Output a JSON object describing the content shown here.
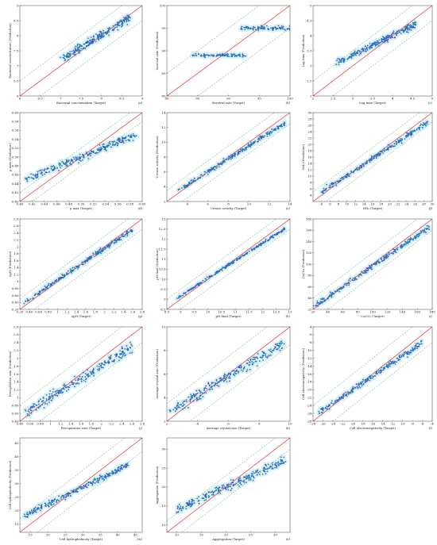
{
  "colors": {
    "ideal_line": "#e8474c",
    "band_line": "#3aa66a",
    "point": "#1f7fbf",
    "point_dense": "#4a4fb8",
    "halo": "#bfe6ee",
    "frame": "#444444"
  },
  "chart_data": [
    {
      "type": "scatter",
      "panel": "a",
      "xlabel": "Bacterial concentration (Target)",
      "ylabel": "Bacterial concentration (Prediction)",
      "xlim": [
        6.0,
        9.0
      ],
      "ylim": [
        6.0,
        9.0
      ],
      "xticks": [
        6.0,
        6.5,
        7.0,
        7.5,
        8.0,
        8.5,
        9.0
      ],
      "yticks": [
        6.0,
        6.5,
        7.0,
        7.5,
        8.0,
        8.5,
        9.0
      ],
      "band": 0.5,
      "cloud": {
        "x0": 7.0,
        "x1": 8.7,
        "y0": 7.2,
        "y1": 8.6,
        "spread": 0.18
      }
    },
    {
      "type": "scatter",
      "panel": "b",
      "xlabel": "Survival rate (Target)",
      "ylabel": "Survival rate (Prediction)",
      "xlim": [
        80,
        100
      ],
      "ylim": [
        80,
        100
      ],
      "xticks": [
        80,
        85,
        90,
        95,
        100
      ],
      "yticks": [
        80,
        85,
        90,
        95,
        100
      ],
      "band": 5,
      "cloud": {
        "clusters": [
          {
            "x0": 84,
            "x1": 93,
            "y": 89,
            "spread": 0.5
          },
          {
            "x0": 92,
            "x1": 100,
            "y": 95,
            "spread": 0.6
          }
        ]
      }
    },
    {
      "type": "scatter",
      "panel": "c",
      "xlabel": "Lag time (Target)",
      "ylabel": "Lag time (Prediction)",
      "xlim": [
        2.0,
        5.0
      ],
      "ylim": [
        2.0,
        5.0
      ],
      "xticks": [
        2.0,
        2.5,
        3.0,
        3.5,
        4.0,
        4.5,
        5.0
      ],
      "yticks": [
        2.0,
        2.5,
        3.0,
        3.5,
        4.0,
        4.5,
        5.0
      ],
      "band": 0.5,
      "cloud": {
        "x0": 2.6,
        "x1": 4.6,
        "y0": 3.1,
        "y1": 4.4,
        "spread": 0.15
      }
    },
    {
      "type": "scatter",
      "panel": "d",
      "xlabel": "μ max (Target)",
      "ylabel": "μ max (Prediction)",
      "xlim": [
        0.4,
        0.6
      ],
      "ylim": [
        0.4,
        0.6
      ],
      "xticks": [
        0.4,
        0.42,
        0.44,
        0.46,
        0.48,
        0.5,
        0.52,
        0.54,
        0.56,
        0.58,
        0.6
      ],
      "yticks": [
        0.4,
        0.42,
        0.44,
        0.46,
        0.48,
        0.5,
        0.52,
        0.54,
        0.56,
        0.58,
        0.6
      ],
      "band": 0.02,
      "cloud": {
        "x0": 0.41,
        "x1": 0.59,
        "y0": 0.45,
        "y1": 0.55,
        "spread": 0.012
      }
    },
    {
      "type": "scatter",
      "panel": "e",
      "xlabel": "Urease activity (Target)",
      "ylabel": "Urease activity (Prediction)",
      "xlim": [
        2,
        14
      ],
      "ylim": [
        2,
        14
      ],
      "xticks": [
        4,
        6,
        8,
        10,
        12,
        14
      ],
      "yticks": [
        2,
        4,
        6,
        8,
        10,
        12,
        14
      ],
      "band": 1.5,
      "cloud": {
        "x0": 3.0,
        "x1": 13.5,
        "y0": 3.4,
        "y1": 12.6,
        "spread": 0.4
      }
    },
    {
      "type": "scatter",
      "panel": "f",
      "xlabel": "NH₄ (Target)",
      "ylabel": "NH₄ (Prediction)",
      "xlim": [
        2,
        30
      ],
      "ylim": [
        2,
        30
      ],
      "xticks": [
        4,
        6,
        8,
        10,
        12,
        14,
        16,
        18,
        20,
        22,
        24,
        26,
        28,
        30
      ],
      "yticks": [
        4,
        6,
        8,
        10,
        12,
        14,
        16,
        18,
        20,
        22,
        24,
        26,
        28,
        30
      ],
      "band": 3,
      "cloud": {
        "x0": 4,
        "x1": 29,
        "y0": 5,
        "y1": 27,
        "spread": 1.1
      }
    },
    {
      "type": "scatter",
      "panel": "g",
      "xlabel": "ΔpH (Target)",
      "ylabel": "ΔpH (Prediction)",
      "xlim": [
        0.2,
        2.8
      ],
      "ylim": [
        0.2,
        2.8
      ],
      "xticks": [
        0.2,
        0.4,
        0.6,
        0.8,
        1.0,
        1.2,
        1.4,
        1.6,
        1.8,
        2.0,
        2.2,
        2.4,
        2.6,
        2.8
      ],
      "yticks": [
        0.2,
        0.4,
        0.6,
        0.8,
        1.0,
        1.2,
        1.4,
        1.6,
        1.8,
        2.0,
        2.2,
        2.4,
        2.6,
        2.8
      ],
      "band": 0.3,
      "cloud": {
        "x0": 0.3,
        "x1": 2.6,
        "y0": 0.4,
        "y1": 2.5,
        "spread": 0.09
      }
    },
    {
      "type": "scatter",
      "panel": "h",
      "xlabel": "pH final (Target)",
      "ylabel": "pH final (Prediction)",
      "xlim": [
        8.5,
        13.0
      ],
      "ylim": [
        8.5,
        13.0
      ],
      "xticks": [
        8.5,
        9.0,
        9.5,
        10.0,
        10.5,
        11.0,
        11.5,
        12.0,
        12.5,
        13.0
      ],
      "yticks": [
        8.5,
        9.0,
        9.5,
        10.0,
        10.5,
        11.0,
        11.5,
        12.0,
        12.5,
        13.0
      ],
      "band": 0.5,
      "cloud": {
        "x0": 8.8,
        "x1": 12.8,
        "y0": 9.0,
        "y1": 12.5,
        "spread": 0.1
      }
    },
    {
      "type": "scatter",
      "panel": "i",
      "xlabel": "CaCO₃ (Target)",
      "ylabel": "CaCO₃ (Prediction)",
      "xlim": [
        20,
        180
      ],
      "ylim": [
        20,
        180
      ],
      "xticks": [
        20,
        40,
        60,
        80,
        100,
        120,
        140,
        160,
        180
      ],
      "yticks": [
        20,
        40,
        60,
        80,
        100,
        120,
        140,
        160,
        180
      ],
      "band": 20,
      "cloud": {
        "x0": 22,
        "x1": 175,
        "y0": 25,
        "y1": 165,
        "spread": 6
      }
    },
    {
      "type": "scatter",
      "panel": "j",
      "xlabel": "Precipitation rate (Target)",
      "ylabel": "Precipitation rate (Prediction)",
      "xlim": [
        0.4,
        2.8
      ],
      "ylim": [
        0.4,
        2.8
      ],
      "xticks": [
        0.4,
        0.6,
        0.8,
        1.0,
        1.2,
        1.4,
        1.6,
        1.8,
        2.0,
        2.2,
        2.4,
        2.6,
        2.8
      ],
      "yticks": [
        0.4,
        0.6,
        0.8,
        1.0,
        1.2,
        1.4,
        1.6,
        1.8,
        2.0,
        2.2,
        2.4,
        2.6,
        2.8
      ],
      "band": 0.4,
      "cloud": {
        "x0": 0.5,
        "x1": 2.6,
        "y0": 0.6,
        "y1": 2.3,
        "spread": 0.18
      }
    },
    {
      "type": "scatter",
      "panel": "k",
      "xlabel": "Average crystal size (Target)",
      "ylabel": "Average crystal size (Prediction)",
      "xlim": [
        2,
        10
      ],
      "ylim": [
        2,
        10
      ],
      "xticks": [
        2,
        4,
        6,
        8,
        10
      ],
      "yticks": [
        2,
        4,
        6,
        8,
        10
      ],
      "band": 1.5,
      "cloud": {
        "x0": 2.2,
        "x1": 9.5,
        "y0": 2.8,
        "y1": 8.6,
        "spread": 0.6
      }
    },
    {
      "type": "scatter",
      "panel": "l",
      "xlabel": "Cell electronegativity (Target)",
      "ylabel": "Cell electronegativity (Prediction)",
      "xlim": [
        -28,
        -4
      ],
      "ylim": [
        -28,
        -4
      ],
      "xticks": [
        -28,
        -26,
        -24,
        -22,
        -20,
        -18,
        -16,
        -14,
        -12,
        -10,
        -8,
        -6,
        -4
      ],
      "yticks": [
        -28,
        -26,
        -24,
        -22,
        -20,
        -18,
        -16,
        -14,
        -12,
        -10,
        -8,
        -6,
        -4
      ],
      "band": 4,
      "cloud": {
        "x0": -27,
        "x1": -6,
        "y0": -26,
        "y1": -8,
        "spread": 1.1
      }
    },
    {
      "type": "scatter",
      "panel": "m",
      "xlabel": "Cell hydrophobicity (Target)",
      "ylabel": "Cell hydrophobicity (Prediction)",
      "xlim": [
        12,
        47
      ],
      "ylim": [
        12,
        47
      ],
      "xticks": [
        15,
        20,
        25,
        30,
        35,
        40,
        45
      ],
      "yticks": [
        15,
        20,
        25,
        30,
        35,
        40,
        45
      ],
      "band": 5,
      "cloud": {
        "x0": 13,
        "x1": 43,
        "y0": 18,
        "y1": 37,
        "spread": 1.5
      }
    },
    {
      "type": "scatter",
      "panel": "n",
      "xlabel": "Aggregation (Target)",
      "ylabel": "Aggregation (Prediction)",
      "xlim": [
        8,
        33
      ],
      "ylim": [
        8,
        33
      ],
      "xticks": [
        10,
        15,
        20,
        25,
        30
      ],
      "yticks": [
        10,
        15,
        20,
        25,
        30
      ],
      "band": 3,
      "cloud": {
        "x0": 10,
        "x1": 32,
        "y0": 14,
        "y1": 27,
        "spread": 1.6
      }
    }
  ]
}
